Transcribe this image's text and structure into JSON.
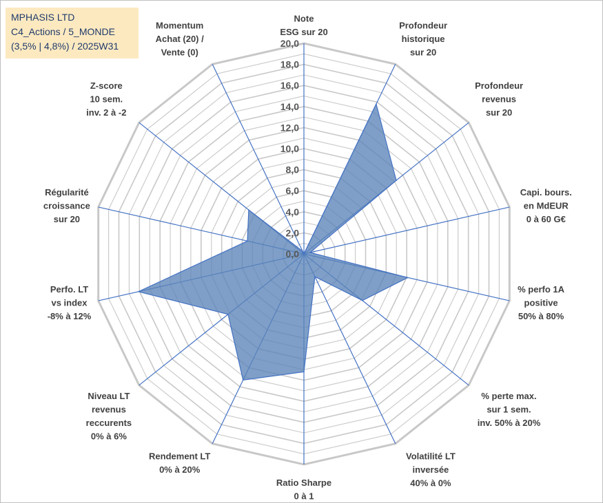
{
  "title_box": {
    "line1": "MPHASIS LTD",
    "line2": "C4_Actions / 5_MONDE",
    "line3": "(3,5% | 4,8%) / 2025W31"
  },
  "chart_data": {
    "type": "radar",
    "rmin": 0,
    "rmax": 20,
    "ticks": [
      "0,0",
      "2,0",
      "4,0",
      "6,0",
      "8,0",
      "10,0",
      "12,0",
      "14,0",
      "16,0",
      "18,0",
      "20,0"
    ],
    "axes": [
      {
        "label": [
          "Note",
          "ESG sur 20"
        ],
        "value": 0
      },
      {
        "label": [
          "Profondeur",
          "historique",
          "sur 20"
        ],
        "value": 15.8
      },
      {
        "label": [
          "Profondeur",
          "revenus",
          "sur 20"
        ],
        "value": 11.2
      },
      {
        "label": [
          "Capi. bours.",
          "en MdEUR",
          "0 à 60 G€"
        ],
        "value": 0.6
      },
      {
        "label": [
          "% perfo 1A",
          "positive",
          "50% à 80%"
        ],
        "value": 10.1
      },
      {
        "label": [
          "% perte max.",
          "sur 1 sem.",
          "inv. 50% à 20%"
        ],
        "value": 7.1
      },
      {
        "label": [
          "Volatilité LT",
          "inversée",
          "40% à 0%"
        ],
        "value": 2.4
      },
      {
        "label": [
          "Ratio Sharpe",
          "0 à 1"
        ],
        "value": 11.2
      },
      {
        "label": [
          "Rendement LT",
          "0% à 20%"
        ],
        "value": 13.3
      },
      {
        "label": [
          "Niveau LT",
          "revenus",
          "reccurents",
          "0% à 6%"
        ],
        "value": 9.2
      },
      {
        "label": [
          "Perfo. LT",
          "vs index",
          "-8% à 12%"
        ],
        "value": 16.1
      },
      {
        "label": [
          "Régularité",
          "croissance",
          "sur 20"
        ],
        "value": 5.5
      },
      {
        "label": [
          "Z-score",
          "10 sem.",
          "inv. 2 à -2"
        ],
        "value": 6.7
      },
      {
        "label": [
          "Momentum",
          "Achat (20) /",
          "Vente (0)"
        ],
        "value": 0.3
      }
    ],
    "colors": {
      "fill": "#5b84b9",
      "stroke": "#4472c4",
      "grid": "#c8c8c8",
      "spoke": "#4472c4"
    }
  }
}
